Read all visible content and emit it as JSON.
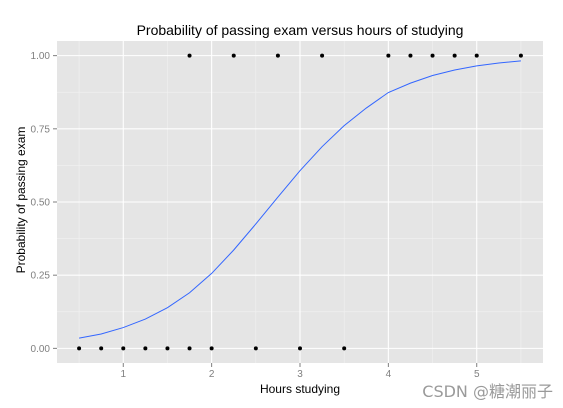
{
  "watermark": "CSDN @糖潮丽子",
  "chart_data": {
    "type": "scatter",
    "title": "Probability of passing exam versus hours of studying",
    "xlabel": "Hours studying",
    "ylabel": "Probability of passing exam",
    "xlim": [
      0.25,
      5.75
    ],
    "ylim": [
      -0.05,
      1.05
    ],
    "x_ticks": [
      1,
      2,
      3,
      4,
      5
    ],
    "y_ticks": [
      0.0,
      0.25,
      0.5,
      0.75,
      1.0
    ],
    "y_tick_labels": [
      "0.00",
      "0.25",
      "0.50",
      "0.75",
      "1.00"
    ],
    "grid": true,
    "colors": {
      "panel": "#e5e5e5",
      "grid": "#ffffff",
      "curve": "#3366ff",
      "points": "#000000"
    },
    "points": {
      "x": [
        0.5,
        0.75,
        1.0,
        1.25,
        1.5,
        1.75,
        1.75,
        2.0,
        2.25,
        2.5,
        2.75,
        3.0,
        3.25,
        3.5,
        4.0,
        4.25,
        4.5,
        4.75,
        5.0,
        5.5
      ],
      "y": [
        0,
        0,
        0,
        0,
        0,
        0,
        1,
        0,
        1,
        0,
        1,
        0,
        1,
        0,
        1,
        1,
        1,
        1,
        1,
        1
      ]
    },
    "curve": {
      "type": "logistic",
      "x": [
        0.5,
        0.75,
        1.0,
        1.25,
        1.5,
        1.75,
        2.0,
        2.25,
        2.5,
        2.75,
        3.0,
        3.25,
        3.5,
        3.75,
        4.0,
        4.25,
        4.5,
        4.75,
        5.0,
        5.25,
        5.5
      ],
      "y": [
        0.035,
        0.049,
        0.071,
        0.1,
        0.139,
        0.19,
        0.256,
        0.336,
        0.425,
        0.517,
        0.607,
        0.689,
        0.761,
        0.821,
        0.874,
        0.906,
        0.932,
        0.951,
        0.965,
        0.975,
        0.982
      ]
    }
  }
}
